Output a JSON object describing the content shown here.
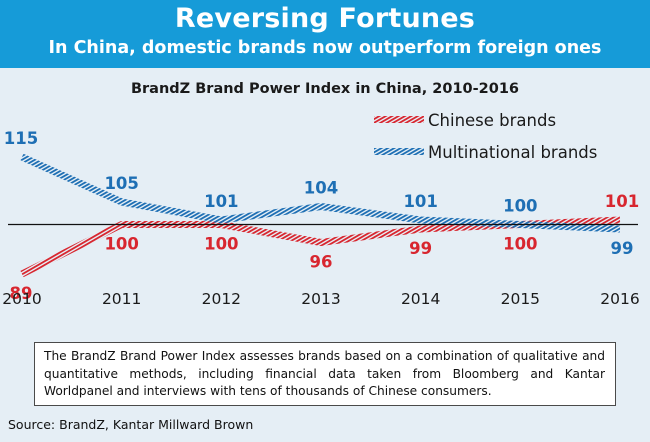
{
  "header": {
    "title": "Reversing Fortunes",
    "subtitle": "In China, domestic brands now outperform foreign ones"
  },
  "chart_data": {
    "type": "line",
    "title": "BrandZ Brand Power Index in China, 2010-2016",
    "x": [
      "2010",
      "2011",
      "2012",
      "2013",
      "2014",
      "2015",
      "2016"
    ],
    "baseline": 100,
    "ylim": [
      85,
      120
    ],
    "legend_position": "top-right",
    "series": [
      {
        "name": "Chinese brands",
        "values": [
          89,
          100,
          100,
          96,
          99,
          100,
          101
        ],
        "color": "#d8262f"
      },
      {
        "name": "Multinational brands",
        "values": [
          115,
          105,
          101,
          104,
          101,
          100,
          99
        ],
        "color": "#1e6fb4"
      }
    ]
  },
  "note": "The BrandZ Brand Power Index assesses brands based on a combination of qualitative and quantitative methods, including financial data taken from Bloomberg and Kantar Worldpanel and interviews with tens of thousands of Chinese consumers.",
  "source": "Source:  BrandZ, Kantar Millward Brown"
}
